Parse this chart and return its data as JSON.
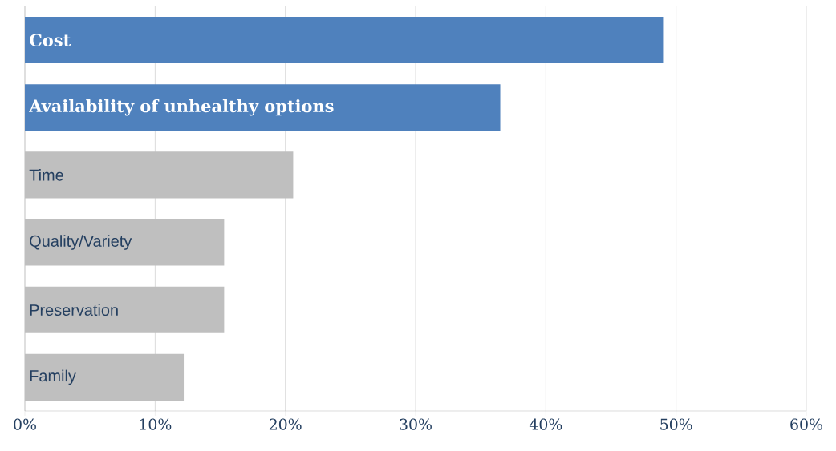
{
  "chart_data": {
    "type": "bar",
    "orientation": "horizontal",
    "categories": [
      "Cost",
      "Availability of unhealthy options",
      "Time",
      "Quality/Variety",
      "Preservation",
      "Family"
    ],
    "values": [
      49,
      36.5,
      20.6,
      15.3,
      15.3,
      12.2
    ],
    "colors": [
      "#4f81bd",
      "#4f81bd",
      "#bfbfbf",
      "#bfbfbf",
      "#bfbfbf",
      "#bfbfbf"
    ],
    "xlim": [
      0,
      60
    ],
    "xticks": [
      {
        "value": 0,
        "label": "0%"
      },
      {
        "value": 10,
        "label": "10%"
      },
      {
        "value": 20,
        "label": "20%"
      },
      {
        "value": 30,
        "label": "30%"
      },
      {
        "value": 40,
        "label": "40%"
      },
      {
        "value": 50,
        "label": "50%"
      },
      {
        "value": 60,
        "label": "60%"
      }
    ],
    "grid": "x"
  }
}
